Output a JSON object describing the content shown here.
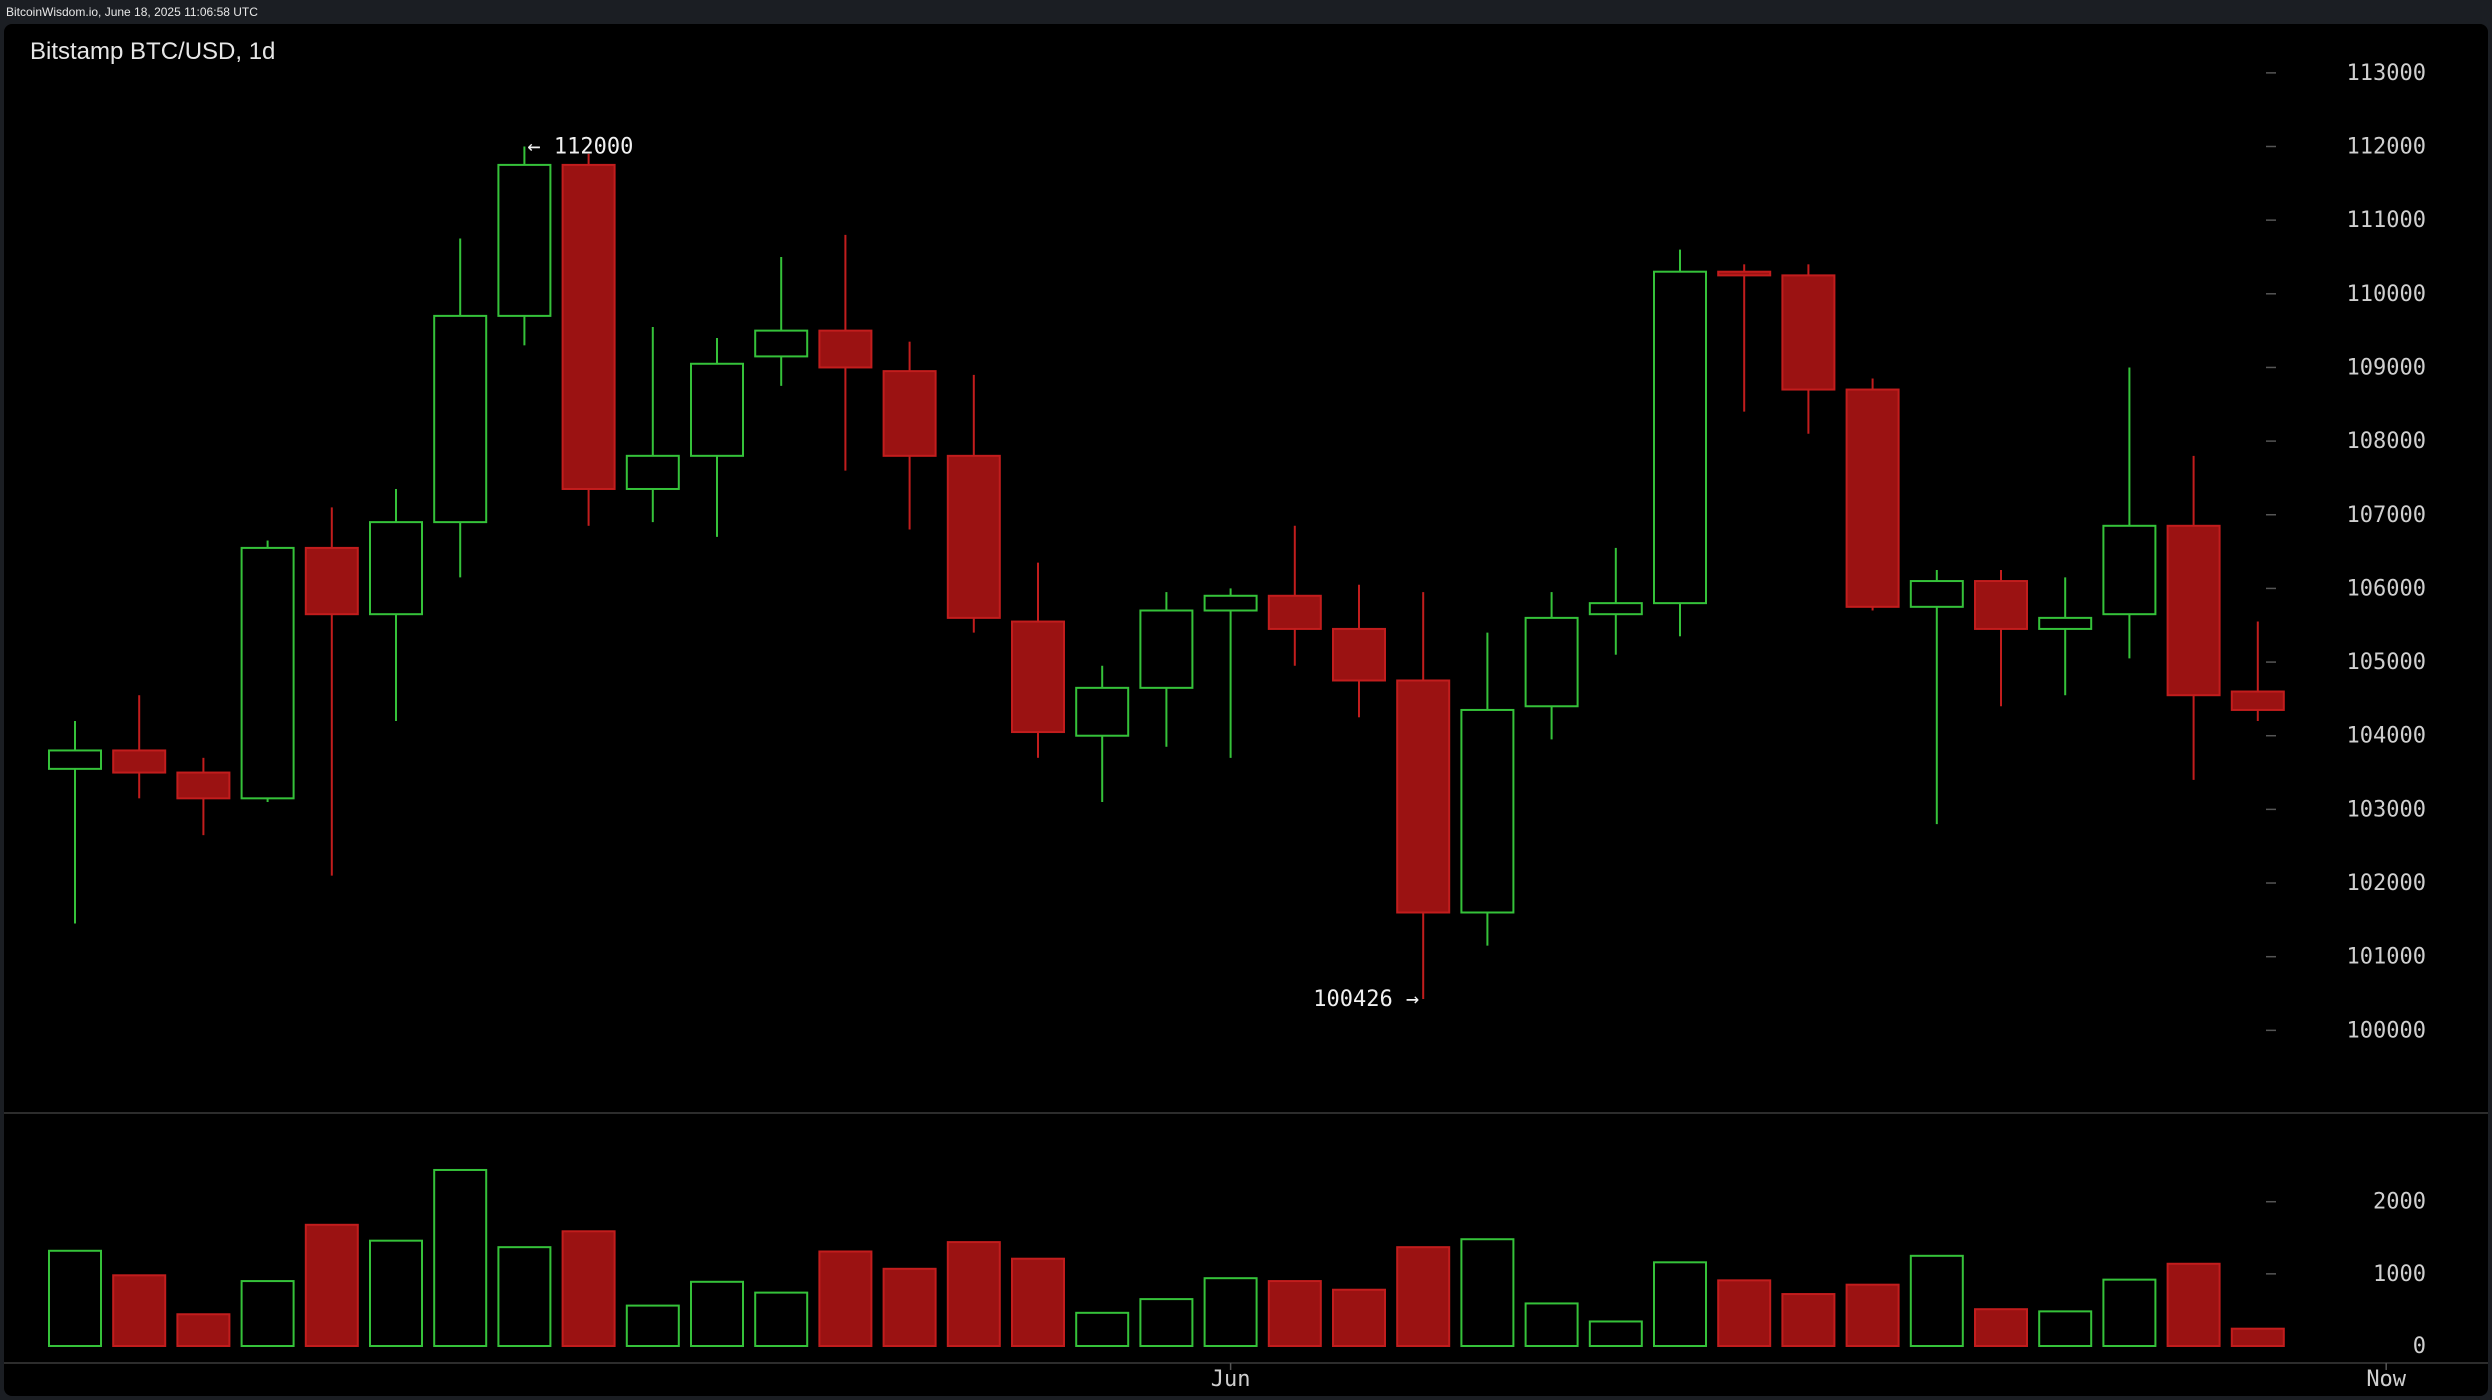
{
  "header": {
    "source_line": "BitcoinWisdom.io, June 18, 2025 11:06:58 UTC"
  },
  "colors": {
    "up": "#35c23a",
    "down": "#9b1212",
    "down_edge": "#c21d1d",
    "background": "#000000",
    "grid_tick": "#555555",
    "text": "#cfcfcf"
  },
  "chart_data": {
    "type": "candlestick",
    "title": "Bitstamp BTC/USD, 1d",
    "price_axis": {
      "ylim": [
        99000,
        113500
      ],
      "ticks": [
        100000,
        101000,
        102000,
        103000,
        104000,
        105000,
        106000,
        107000,
        108000,
        109000,
        110000,
        111000,
        112000,
        113000
      ]
    },
    "volume_axis": {
      "ylim": [
        0,
        2800
      ],
      "ticks": [
        0,
        1000,
        2000
      ]
    },
    "x_labels": [
      {
        "index": 18,
        "label": "Jun"
      },
      {
        "index": 36,
        "label": "Now"
      }
    ],
    "annotations": [
      {
        "text": "← 112000",
        "index": 7,
        "price": 112000,
        "side": "right"
      },
      {
        "text": "100426 →",
        "index": 21,
        "price": 100426,
        "side": "left"
      }
    ],
    "candles": [
      {
        "open": 103550,
        "high": 104200,
        "low": 101450,
        "close": 103800,
        "volume": 1320
      },
      {
        "open": 103800,
        "high": 104550,
        "low": 103150,
        "close": 103500,
        "volume": 980
      },
      {
        "open": 103500,
        "high": 103700,
        "low": 102650,
        "close": 103150,
        "volume": 440
      },
      {
        "open": 103150,
        "high": 106650,
        "low": 103100,
        "close": 106550,
        "volume": 900
      },
      {
        "open": 106550,
        "high": 107100,
        "low": 102100,
        "close": 105650,
        "volume": 1680
      },
      {
        "open": 105650,
        "high": 107350,
        "low": 104200,
        "close": 106900,
        "volume": 1460
      },
      {
        "open": 106900,
        "high": 110750,
        "low": 106150,
        "close": 109700,
        "volume": 2440
      },
      {
        "open": 109700,
        "high": 112000,
        "low": 109300,
        "close": 111750,
        "volume": 1370
      },
      {
        "open": 111750,
        "high": 111900,
        "low": 106850,
        "close": 107350,
        "volume": 1590
      },
      {
        "open": 107350,
        "high": 109550,
        "low": 106900,
        "close": 107800,
        "volume": 560
      },
      {
        "open": 107800,
        "high": 109400,
        "low": 106700,
        "close": 109050,
        "volume": 890
      },
      {
        "open": 109150,
        "high": 110500,
        "low": 108750,
        "close": 109500,
        "volume": 740
      },
      {
        "open": 109500,
        "high": 110800,
        "low": 107600,
        "close": 109000,
        "volume": 1310
      },
      {
        "open": 108950,
        "high": 109350,
        "low": 106800,
        "close": 107800,
        "volume": 1070
      },
      {
        "open": 107800,
        "high": 108900,
        "low": 105400,
        "close": 105600,
        "volume": 1440
      },
      {
        "open": 105550,
        "high": 106350,
        "low": 103700,
        "close": 104050,
        "volume": 1210
      },
      {
        "open": 104000,
        "high": 104950,
        "low": 103100,
        "close": 104650,
        "volume": 460
      },
      {
        "open": 104650,
        "high": 105950,
        "low": 103850,
        "close": 105700,
        "volume": 650
      },
      {
        "open": 105700,
        "high": 106000,
        "low": 103700,
        "close": 105900,
        "volume": 940
      },
      {
        "open": 105900,
        "high": 106850,
        "low": 104950,
        "close": 105450,
        "volume": 900
      },
      {
        "open": 105450,
        "high": 106050,
        "low": 104250,
        "close": 104750,
        "volume": 780
      },
      {
        "open": 104750,
        "high": 105950,
        "low": 100426,
        "close": 101600,
        "volume": 1370
      },
      {
        "open": 101600,
        "high": 105400,
        "low": 101150,
        "close": 104350,
        "volume": 1480
      },
      {
        "open": 104400,
        "high": 105950,
        "low": 103950,
        "close": 105600,
        "volume": 590
      },
      {
        "open": 105650,
        "high": 106550,
        "low": 105100,
        "close": 105800,
        "volume": 340
      },
      {
        "open": 105800,
        "high": 110600,
        "low": 105350,
        "close": 110300,
        "volume": 1160
      },
      {
        "open": 110300,
        "high": 110400,
        "low": 108400,
        "close": 110250,
        "volume": 910
      },
      {
        "open": 110250,
        "high": 110400,
        "low": 108100,
        "close": 108700,
        "volume": 720
      },
      {
        "open": 108700,
        "high": 108850,
        "low": 105700,
        "close": 105750,
        "volume": 850
      },
      {
        "open": 105750,
        "high": 106250,
        "low": 102800,
        "close": 106100,
        "volume": 1250
      },
      {
        "open": 106100,
        "high": 106250,
        "low": 104400,
        "close": 105450,
        "volume": 510
      },
      {
        "open": 105450,
        "high": 106150,
        "low": 104550,
        "close": 105600,
        "volume": 480
      },
      {
        "open": 105650,
        "high": 109000,
        "low": 105050,
        "close": 106850,
        "volume": 920
      },
      {
        "open": 106850,
        "high": 107800,
        "low": 103400,
        "close": 104550,
        "volume": 1140
      },
      {
        "open": 104600,
        "high": 105550,
        "low": 104200,
        "close": 104350,
        "volume": 240
      }
    ]
  }
}
